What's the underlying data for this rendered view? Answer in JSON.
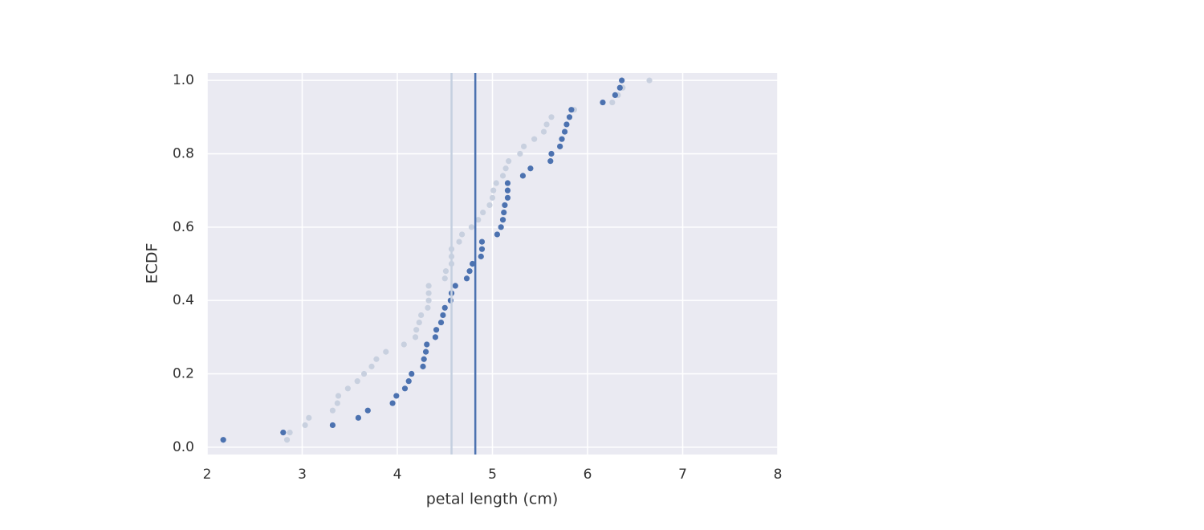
{
  "chart_data": {
    "type": "scatter",
    "xlabel": "petal length (cm)",
    "ylabel": "ECDF",
    "xlim": [
      2,
      8
    ],
    "ylim": [
      -0.02,
      1.02
    ],
    "xticks": [
      2,
      3,
      4,
      5,
      6,
      7,
      8
    ],
    "yticks": [
      {
        "value": 0,
        "label": "0.0"
      },
      {
        "value": 0.2,
        "label": "0.2"
      },
      {
        "value": 0.4,
        "label": "0.4"
      },
      {
        "value": 0.6,
        "label": "0.6"
      },
      {
        "value": 0.8,
        "label": "0.8"
      },
      {
        "value": 1,
        "label": "1.0"
      }
    ],
    "grid": true,
    "series": [
      {
        "color": "#c8d0df",
        "x": [
          2.84,
          2.87,
          3.03,
          3.07,
          3.32,
          3.37,
          3.38,
          3.48,
          3.58,
          3.65,
          3.73,
          3.78,
          3.88,
          4.07,
          4.19,
          4.2,
          4.23,
          4.25,
          4.32,
          4.33,
          4.33,
          4.33,
          4.5,
          4.51,
          4.57,
          4.57,
          4.57,
          4.65,
          4.68,
          4.78,
          4.85,
          4.9,
          4.97,
          5.0,
          5.01,
          5.04,
          5.11,
          5.14,
          5.17,
          5.29,
          5.33,
          5.44,
          5.54,
          5.57,
          5.62,
          5.86,
          6.26,
          6.32,
          6.37,
          6.65
        ],
        "values": [
          0.02,
          0.04,
          0.06,
          0.08,
          0.1,
          0.12,
          0.14,
          0.16,
          0.18,
          0.2,
          0.22,
          0.24,
          0.26,
          0.28,
          0.3,
          0.32,
          0.34,
          0.36,
          0.38,
          0.4,
          0.42,
          0.44,
          0.46,
          0.48,
          0.5,
          0.52,
          0.54,
          0.56,
          0.58,
          0.6,
          0.62,
          0.64,
          0.66,
          0.68,
          0.7,
          0.72,
          0.74,
          0.76,
          0.78,
          0.8,
          0.82,
          0.84,
          0.86,
          0.88,
          0.9,
          0.92,
          0.94,
          0.96,
          0.98,
          1.0
        ]
      },
      {
        "color": "#4c72b0",
        "x": [
          2.17,
          2.8,
          3.32,
          3.59,
          3.69,
          3.95,
          3.99,
          4.08,
          4.12,
          4.15,
          4.27,
          4.28,
          4.3,
          4.31,
          4.4,
          4.41,
          4.46,
          4.48,
          4.5,
          4.56,
          4.57,
          4.61,
          4.73,
          4.76,
          4.79,
          4.88,
          4.89,
          4.89,
          5.05,
          5.09,
          5.11,
          5.12,
          5.13,
          5.16,
          5.16,
          5.16,
          5.32,
          5.4,
          5.61,
          5.62,
          5.71,
          5.73,
          5.76,
          5.78,
          5.81,
          5.83,
          6.16,
          6.29,
          6.34,
          6.36
        ],
        "values": [
          0.02,
          0.04,
          0.06,
          0.08,
          0.1,
          0.12,
          0.14,
          0.16,
          0.18,
          0.2,
          0.22,
          0.24,
          0.26,
          0.28,
          0.3,
          0.32,
          0.34,
          0.36,
          0.38,
          0.4,
          0.42,
          0.44,
          0.46,
          0.48,
          0.5,
          0.52,
          0.54,
          0.56,
          0.58,
          0.6,
          0.62,
          0.64,
          0.66,
          0.68,
          0.7,
          0.72,
          0.74,
          0.76,
          0.78,
          0.8,
          0.82,
          0.84,
          0.86,
          0.88,
          0.9,
          0.92,
          0.94,
          0.96,
          0.98,
          1.0
        ]
      }
    ],
    "vlines": [
      {
        "x": 4.57,
        "color": "#c5d0e0"
      },
      {
        "x": 4.82,
        "color": "#4c72b0"
      }
    ]
  }
}
